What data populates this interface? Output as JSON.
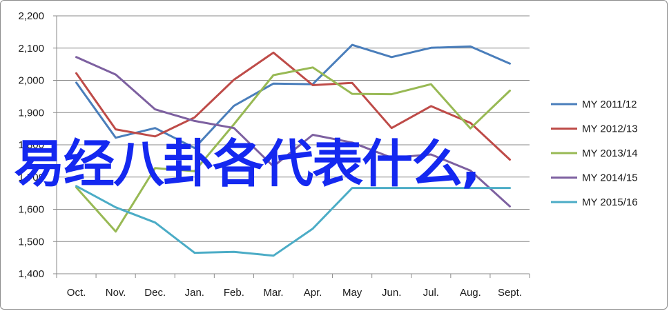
{
  "chart_data": {
    "type": "line",
    "title": "",
    "xlabel": "",
    "ylabel": "",
    "categories": [
      "Oct.",
      "Nov.",
      "Dec.",
      "Jan.",
      "Feb.",
      "Mar.",
      "Apr.",
      "May",
      "Jun.",
      "Jul.",
      "Aug.",
      "Sept."
    ],
    "ylim": [
      1400,
      2200
    ],
    "yticks": [
      "1,400",
      "1,500",
      "1,600",
      "1,700",
      "1,800",
      "1,900",
      "2,000",
      "2,100",
      "2,200"
    ],
    "grid": true,
    "legend_position": "right",
    "series": [
      {
        "name": "MY 2011/12",
        "color": "#4a7ebb",
        "values": [
          1993,
          1822,
          1852,
          1790,
          1921,
          1990,
          1988,
          2110,
          2072,
          2101,
          2105,
          2052
        ]
      },
      {
        "name": "MY 2012/13",
        "color": "#be4b48",
        "values": [
          2022,
          1848,
          1826,
          1885,
          2002,
          2086,
          1985,
          1992,
          1852,
          1920,
          1868,
          1754
        ]
      },
      {
        "name": "MY 2013/14",
        "color": "#98b954",
        "values": [
          1668,
          1531,
          1728,
          1718,
          1864,
          2016,
          2040,
          1958,
          1957,
          1988,
          1851,
          1968
        ]
      },
      {
        "name": "MY 2014/15",
        "color": "#7d60a0",
        "values": [
          2072,
          2018,
          1910,
          1874,
          1852,
          1733,
          1831,
          1807,
          1760,
          1770,
          1720,
          1609
        ]
      },
      {
        "name": "MY 2015/16",
        "color": "#4bacc6",
        "values": [
          1672,
          1606,
          1559,
          1465,
          1468,
          1456,
          1540,
          1666,
          1666,
          1666,
          1666,
          1666
        ]
      }
    ]
  },
  "overlay": {
    "text": "易经八卦各代表什么,",
    "color": "#1428f0"
  }
}
